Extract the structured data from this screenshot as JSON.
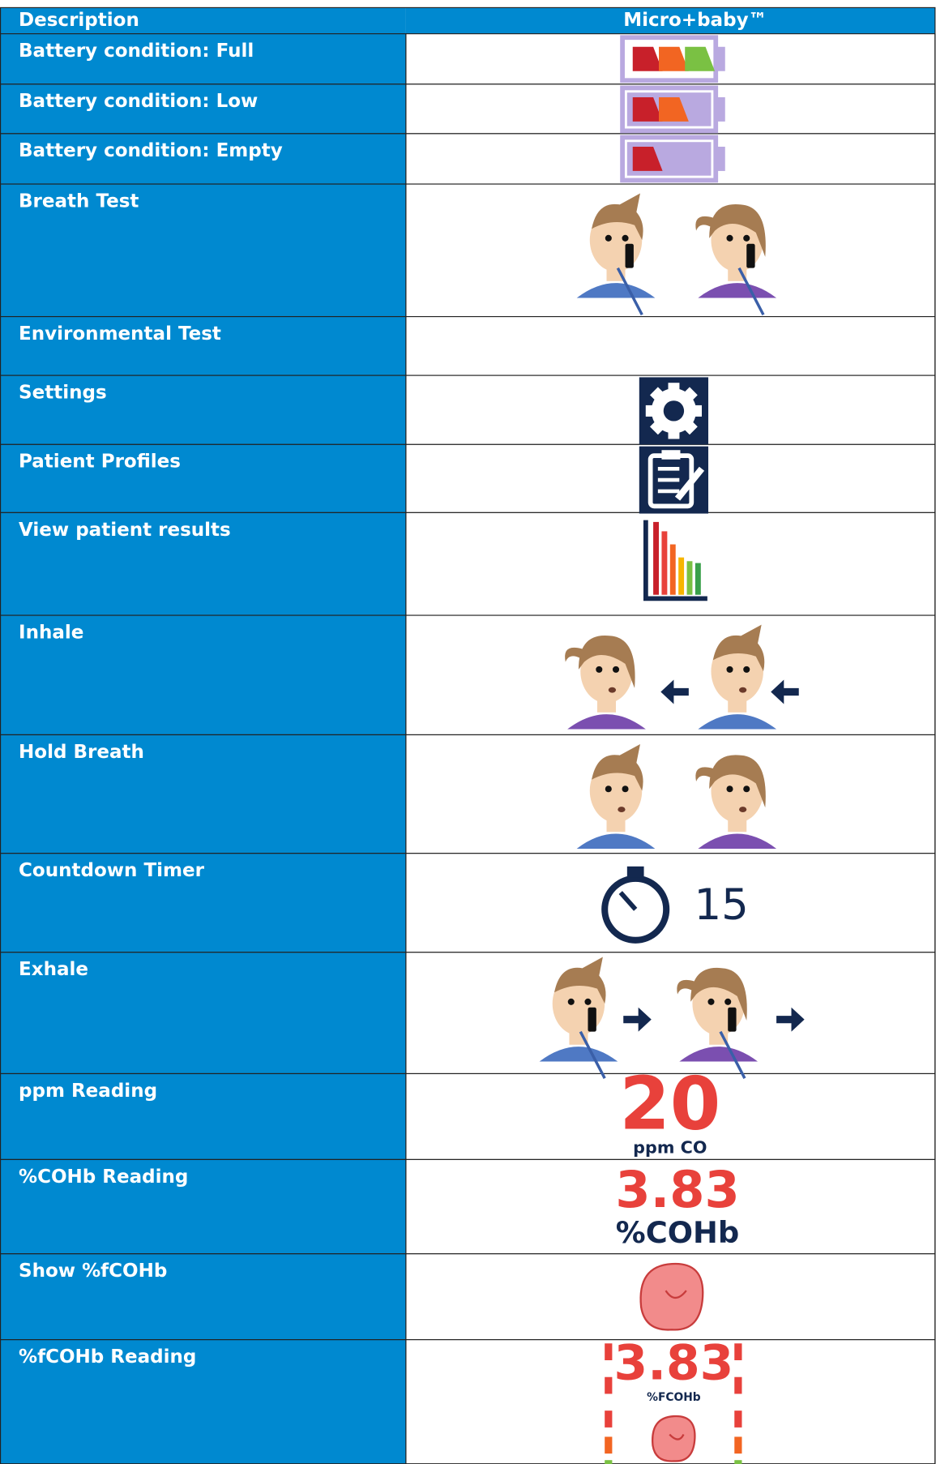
{
  "table": {
    "header": [
      "Description",
      "Micro+baby™"
    ],
    "rows": [
      {
        "label": "Battery condition: Full"
      },
      {
        "label": "Battery condition: Low"
      },
      {
        "label": "Battery condition: Empty"
      },
      {
        "label": "Breath Test"
      },
      {
        "label": "Environmental Test"
      },
      {
        "label": "Settings"
      },
      {
        "label": "Patient Profiles"
      },
      {
        "label": "View patient results"
      },
      {
        "label": "Inhale"
      },
      {
        "label": "Hold Breath"
      },
      {
        "label": "Countdown Timer",
        "icon_text": [
          "15"
        ]
      },
      {
        "label": "Exhale"
      },
      {
        "label": "ppm Reading",
        "icon_text": [
          "20",
          "ppm CO"
        ]
      },
      {
        "label": "%COHb Reading",
        "icon_text": [
          "3.83",
          "%COHb"
        ]
      },
      {
        "label": "Show %fCOHb"
      },
      {
        "label": "%fCOHb Reading",
        "icon_text": [
          "3.83",
          "%FCOHb"
        ]
      }
    ]
  }
}
